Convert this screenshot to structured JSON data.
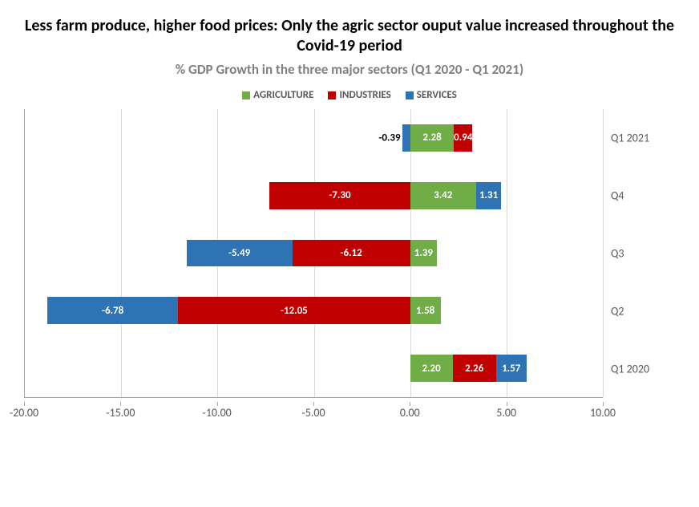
{
  "chart": {
    "type": "bar-stacked-horizontal",
    "title": "Less farm produce, higher food prices: Only the agric sector ouput value increased throughout the Covid-19 period",
    "subtitle": "% GDP Growth in the three major sectors (Q1 2020 - Q1 2021)",
    "title_fontsize": 20,
    "title_color": "#000000",
    "subtitle_fontsize": 17,
    "subtitle_color": "#808080",
    "background_color": "#ffffff",
    "grid_color": "#d9d9d9",
    "axis_color": "#a6a6a6",
    "tick_label_color": "#595959",
    "tick_label_fontsize": 14,
    "data_label_fontsize": 13,
    "data_label_color_inside": "#ffffff",
    "data_label_color_outside": "#000000",
    "xlim": [
      -20,
      10
    ],
    "xtick_step": 5,
    "xticks": [
      "-20.00",
      "-15.00",
      "-10.00",
      "-5.00",
      "0.00",
      "5.00",
      "10.00"
    ],
    "legend": {
      "position": "top",
      "items": [
        {
          "label": "AGRICULTURE",
          "color": "#70ad47"
        },
        {
          "label": "INDUSTRIES",
          "color": "#c00000"
        },
        {
          "label": "SERVICES",
          "color": "#2e74b5"
        }
      ]
    },
    "categories": [
      "Q1 2021",
      "Q4",
      "Q3",
      "Q2",
      "Q1 2020"
    ],
    "series": {
      "agriculture": {
        "color": "#70ad47",
        "values": [
          2.28,
          3.42,
          1.39,
          1.58,
          2.2
        ]
      },
      "industries": {
        "color": "#c00000",
        "values": [
          0.94,
          -7.3,
          -6.12,
          -12.05,
          2.26
        ]
      },
      "services": {
        "color": "#2e74b5",
        "values": [
          -0.39,
          1.31,
          -5.49,
          -6.78,
          1.57
        ]
      }
    },
    "bar_height_ratio": 0.47
  }
}
